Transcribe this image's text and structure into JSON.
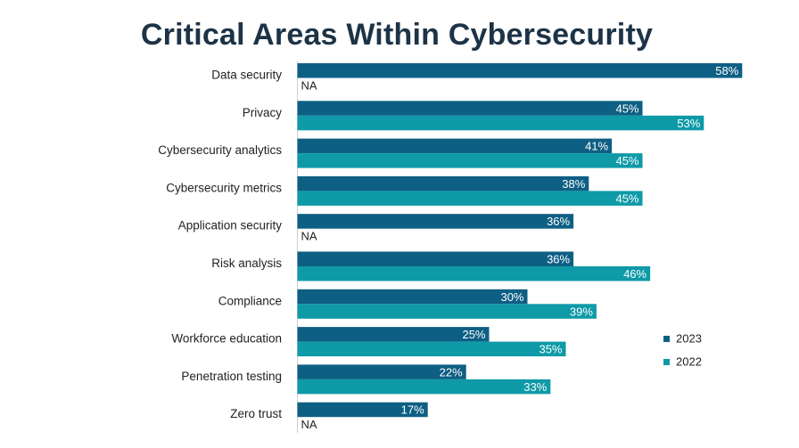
{
  "chart_data": {
    "type": "bar",
    "orientation": "horizontal",
    "title": "Critical Areas Within Cybersecurity",
    "categories": [
      "Data security",
      "Privacy",
      "Cybersecurity analytics",
      "Cybersecurity metrics",
      "Application security",
      "Risk analysis",
      "Compliance",
      "Workforce education",
      "Penetration testing",
      "Zero trust"
    ],
    "series": [
      {
        "name": "2023",
        "color": "#0e5f84",
        "values": [
          58,
          45,
          41,
          38,
          36,
          36,
          30,
          25,
          22,
          17
        ]
      },
      {
        "name": "2022",
        "color": "#0e9aa7",
        "values": [
          null,
          53,
          45,
          45,
          null,
          46,
          39,
          35,
          33,
          null
        ]
      }
    ],
    "missing_label": "NA",
    "value_suffix": "%",
    "xlim": [
      0,
      60
    ],
    "legend_position": "right",
    "grid": false
  }
}
